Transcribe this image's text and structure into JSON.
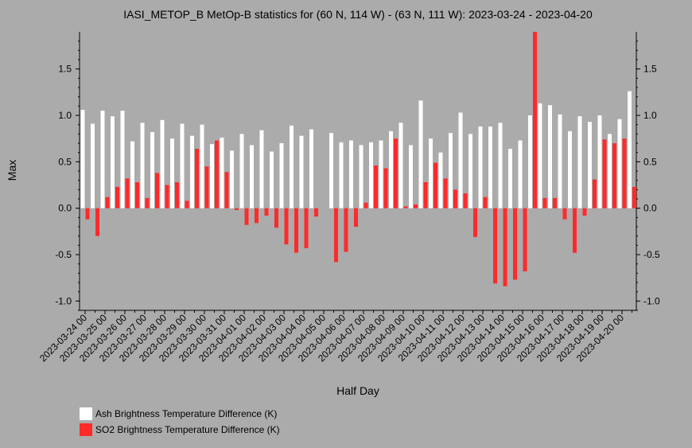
{
  "chart_data": {
    "type": "bar",
    "title": "IASI_METOP_B MetOp-B statistics for (60 N, 114 W) - (63 N, 111 W): 2023-03-24 - 2023-04-20",
    "xlabel": "Half Day",
    "ylabel": "Max",
    "ylim": [
      -1.1,
      1.9
    ],
    "yticks": [
      -1.0,
      -0.5,
      0.0,
      0.5,
      1.0,
      1.5
    ],
    "ytick_labels": [
      "-1.0",
      "-0.5",
      "0.0",
      "0.5",
      "1.0",
      "1.5"
    ],
    "xtick_labels": [
      "2023-03-24 00",
      "2023-03-25 00",
      "2023-03-26 00",
      "2023-03-27 00",
      "2023-03-28 00",
      "2023-03-29 00",
      "2023-03-30 00",
      "2023-03-31 00",
      "2023-04-01 00",
      "2023-04-02 00",
      "2023-04-03 00",
      "2023-04-04 00",
      "2023-04-05 00",
      "2023-04-06 00",
      "2023-04-07 00",
      "2023-04-08 00",
      "2023-04-09 00",
      "2023-04-10 00",
      "2023-04-11 00",
      "2023-04-12 00",
      "2023-04-13 00",
      "2023-04-14 00",
      "2023-04-15 00",
      "2023-04-16 00",
      "2023-04-17 00",
      "2023-04-18 00",
      "2023-04-19 00",
      "2023-04-20 00"
    ],
    "grid": false,
    "legend_position": "bottom-left",
    "series": [
      {
        "name": "Ash Brightness Temperature Difference (K)",
        "color": "#ffffff",
        "values": [
          1.06,
          0.91,
          1.05,
          0.99,
          1.05,
          0.72,
          0.92,
          0.82,
          0.95,
          0.75,
          0.91,
          0.78,
          0.9,
          0.69,
          0.76,
          0.62,
          0.8,
          0.68,
          0.84,
          0.61,
          0.7,
          0.89,
          0.78,
          0.85,
          null,
          0.81,
          0.71,
          0.73,
          0.68,
          0.71,
          0.73,
          0.83,
          0.92,
          0.68,
          1.16,
          0.75,
          0.6,
          0.81,
          1.03,
          0.8,
          0.88,
          0.88,
          0.92,
          0.64,
          0.73,
          1.0,
          1.13,
          1.11,
          1.01,
          0.83,
          0.99,
          0.93,
          1.0,
          0.8,
          0.96,
          1.26
        ]
      },
      {
        "name": "SO2 Brightness Temperature Difference (K)",
        "color": "#ff2a2a",
        "values": [
          -0.12,
          -0.3,
          0.12,
          0.23,
          0.32,
          0.28,
          0.11,
          0.38,
          0.25,
          0.28,
          0.08,
          0.64,
          0.45,
          0.73,
          0.39,
          -0.02,
          -0.18,
          -0.16,
          -0.08,
          -0.21,
          -0.39,
          -0.48,
          -0.43,
          -0.09,
          null,
          -0.58,
          -0.47,
          -0.2,
          0.06,
          0.46,
          0.43,
          0.75,
          0.02,
          0.04,
          0.28,
          0.49,
          0.32,
          0.2,
          0.16,
          -0.31,
          0.12,
          -0.81,
          -0.84,
          -0.77,
          -0.68,
          1.9,
          0.11,
          0.11,
          -0.12,
          -0.48,
          -0.08,
          0.31,
          0.74,
          0.7,
          0.75,
          0.23
        ]
      }
    ]
  }
}
